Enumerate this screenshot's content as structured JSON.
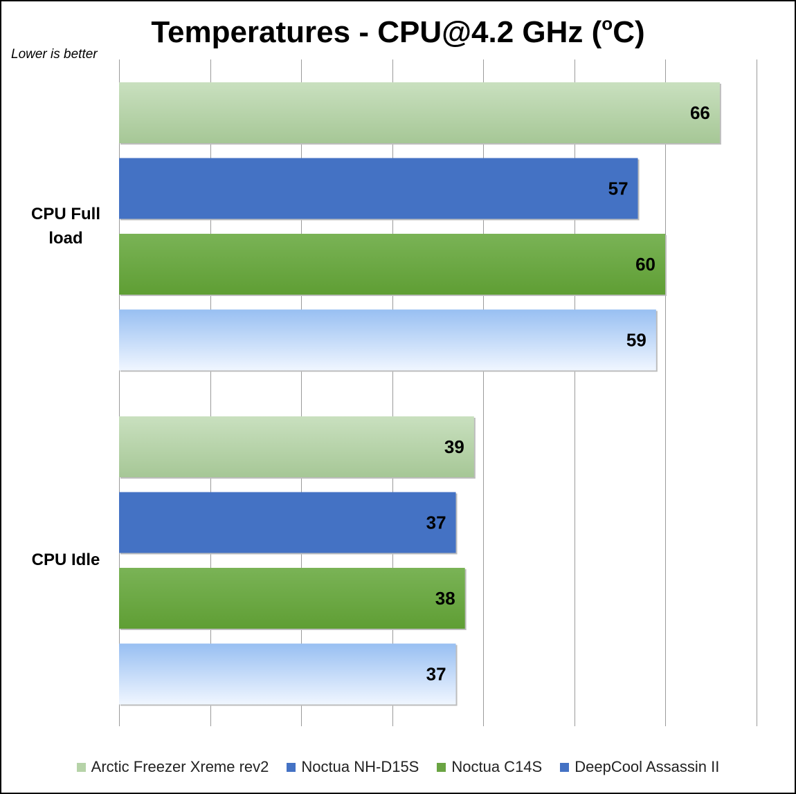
{
  "chart_data": {
    "type": "bar",
    "orientation": "horizontal",
    "title": "Temperatures - CPU@4.2 GHz (",
    "title_sup": "o",
    "title_end": "C)",
    "subtitle": "Lower is better",
    "categories": [
      "CPU Full load",
      "CPU Idle"
    ],
    "series": [
      {
        "name": "Arctic Freezer Xreme rev2",
        "values": [
          66,
          39
        ],
        "color": "#b6d3a8"
      },
      {
        "name": "Noctua NH-D15S",
        "values": [
          57,
          37
        ],
        "color": "#4472c4"
      },
      {
        "name": "Noctua C14S",
        "values": [
          60,
          38
        ],
        "color": "#6aa443"
      },
      {
        "name": "DeepCool Assassin II",
        "values": [
          59,
          37
        ],
        "color": "#a9c8f2"
      }
    ],
    "xlim": [
      0,
      70
    ],
    "x_gridline_step": 10,
    "grid": true,
    "data_labels": true,
    "legend_position": "bottom"
  }
}
